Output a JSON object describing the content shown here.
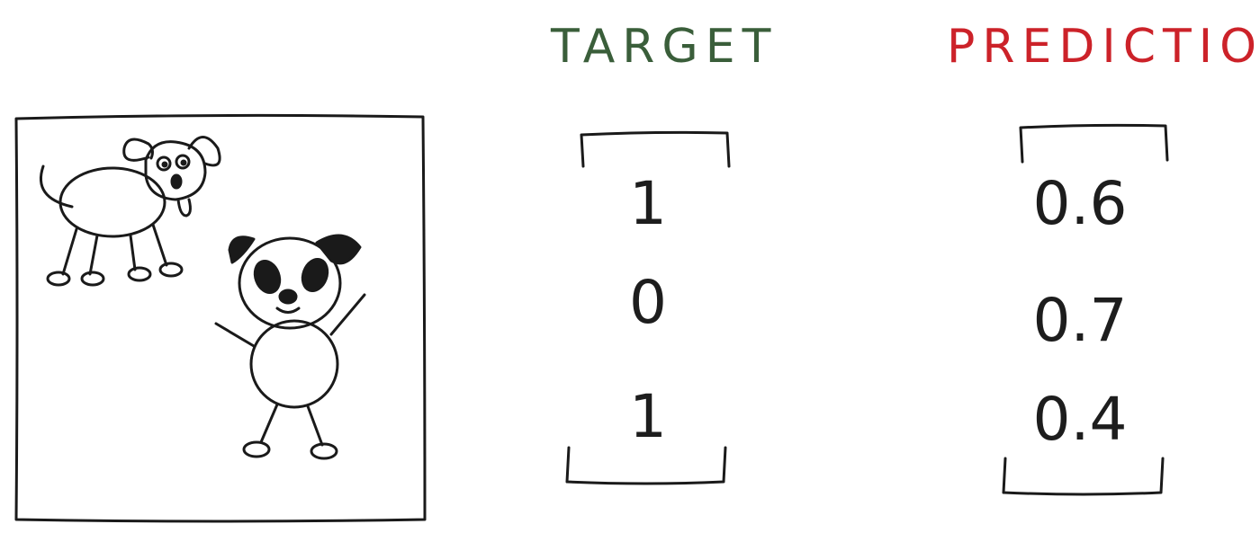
{
  "target": {
    "title": "TARGET",
    "title_color": "#3a5e3a",
    "values": [
      "1",
      "0",
      "1"
    ]
  },
  "prediction": {
    "title": "PREDICTION",
    "title_color": "#cc2229",
    "values": [
      "0.6",
      "0.7",
      "0.4"
    ]
  },
  "image_panel": {
    "subjects": [
      "dog-drawing",
      "panda-drawing"
    ]
  }
}
